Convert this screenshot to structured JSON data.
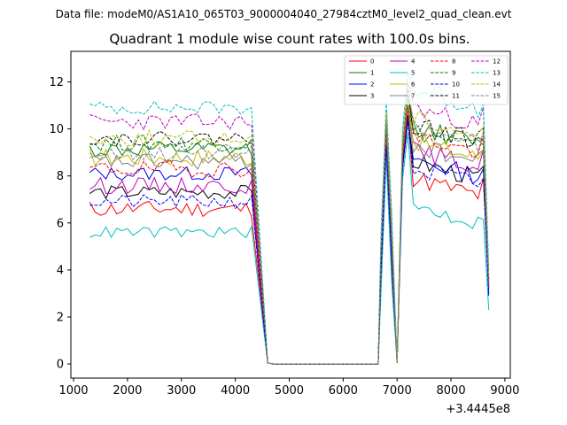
{
  "chart_data": {
    "type": "line",
    "suptitle": "Data file: modeM0/AS1A10_065T03_9000004040_27984cztM0_level2_quad_clean.evt",
    "title": "Quadrant 1 module wise count rates with 100.0s bins.",
    "xlabel": "",
    "ylabel": "",
    "x_offset_label": "+3.4445e8",
    "xlim": [
      950,
      9100
    ],
    "ylim": [
      -0.6,
      13.3
    ],
    "xticks": [
      1000,
      2000,
      3000,
      4000,
      5000,
      6000,
      7000,
      8000,
      9000
    ],
    "xtick_labels": [
      "1000",
      "2000",
      "3000",
      "4000",
      "5000",
      "6000",
      "7000",
      "8000",
      "9000"
    ],
    "yticks": [
      0,
      2,
      4,
      6,
      8,
      10,
      12
    ],
    "ytick_labels": [
      "0",
      "2",
      "4",
      "6",
      "8",
      "10",
      "12"
    ],
    "legend_location": "upper right",
    "x_segments": {
      "seg1": {
        "start": 1300,
        "step": 100,
        "count": 31
      },
      "gap": [
        4500,
        4600,
        4700,
        6650,
        6700
      ],
      "seg2": [
        6800,
        6900,
        7000,
        7100,
        7200,
        7300,
        7400,
        7500,
        7600,
        7700,
        7800,
        7900,
        8000,
        8100,
        8200,
        8300,
        8400,
        8500,
        8600,
        8700
      ]
    },
    "series": [
      {
        "name": "0",
        "color": "#ff0000",
        "dash": "solid",
        "base1": 6.6,
        "amp1": 0.35,
        "base2": 7.0,
        "amp2": 0.4,
        "peak": 10.6,
        "end": 3.3,
        "seed": 11
      },
      {
        "name": "1",
        "color": "#008000",
        "dash": "solid",
        "base1": 9.1,
        "amp1": 0.35,
        "base2": 9.2,
        "amp2": 0.4,
        "peak": 11.3,
        "end": 3.6,
        "seed": 12
      },
      {
        "name": "2",
        "color": "#0000ff",
        "dash": "solid",
        "base1": 8.1,
        "amp1": 0.3,
        "base2": 7.8,
        "amp2": 0.4,
        "peak": 10.4,
        "end": 3.0,
        "seed": 13
      },
      {
        "name": "3",
        "color": "#000000",
        "dash": "solid",
        "base1": 7.3,
        "amp1": 0.3,
        "base2": 7.7,
        "amp2": 0.4,
        "peak": 10.6,
        "end": 3.2,
        "seed": 14
      },
      {
        "name": "4",
        "color": "#bf00bf",
        "dash": "solid",
        "base1": 7.6,
        "amp1": 0.35,
        "base2": 8.2,
        "amp2": 0.4,
        "peak": 10.9,
        "end": 3.2,
        "seed": 15
      },
      {
        "name": "5",
        "color": "#00bfbf",
        "dash": "solid",
        "base1": 5.6,
        "amp1": 0.25,
        "base2": 5.8,
        "amp2": 0.35,
        "peak": 9.8,
        "end": 2.3,
        "seed": 16
      },
      {
        "name": "6",
        "color": "#bfbf00",
        "dash": "solid",
        "base1": 8.8,
        "amp1": 0.4,
        "base2": 8.6,
        "amp2": 0.4,
        "peak": 11.2,
        "end": 3.4,
        "seed": 17
      },
      {
        "name": "7",
        "color": "#808080",
        "dash": "solid",
        "base1": 8.6,
        "amp1": 0.35,
        "base2": 8.4,
        "amp2": 0.4,
        "peak": 11.0,
        "end": 3.3,
        "seed": 18
      },
      {
        "name": "8",
        "color": "#ff0000",
        "dash": "dashed",
        "base1": 8.3,
        "amp1": 0.35,
        "base2": 8.8,
        "amp2": 0.4,
        "peak": 10.9,
        "end": 3.4,
        "seed": 19
      },
      {
        "name": "9",
        "color": "#008000",
        "dash": "dashed",
        "base1": 9.4,
        "amp1": 0.35,
        "base2": 9.0,
        "amp2": 0.4,
        "peak": 11.4,
        "end": 3.5,
        "seed": 20
      },
      {
        "name": "10",
        "color": "#0000ff",
        "dash": "dashed",
        "base1": 6.9,
        "amp1": 0.3,
        "base2": 7.4,
        "amp2": 0.5,
        "peak": 10.3,
        "end": 2.9,
        "seed": 21
      },
      {
        "name": "11",
        "color": "#000000",
        "dash": "dashed",
        "base1": 9.6,
        "amp1": 0.3,
        "base2": 9.3,
        "amp2": 0.4,
        "peak": 11.7,
        "end": 3.6,
        "seed": 22
      },
      {
        "name": "12",
        "color": "#bf00bf",
        "dash": "dashed",
        "base1": 10.3,
        "amp1": 0.35,
        "base2": 10.0,
        "amp2": 0.4,
        "peak": 12.0,
        "end": 3.8,
        "seed": 23
      },
      {
        "name": "13",
        "color": "#00bfbf",
        "dash": "dashed",
        "base1": 10.9,
        "amp1": 0.3,
        "base2": 10.8,
        "amp2": 0.5,
        "peak": 12.4,
        "end": 4.0,
        "seed": 24
      },
      {
        "name": "14",
        "color": "#bfbf00",
        "dash": "dashed",
        "base1": 9.6,
        "amp1": 0.35,
        "base2": 9.6,
        "amp2": 0.4,
        "peak": 11.9,
        "end": 3.7,
        "seed": 25
      },
      {
        "name": "15",
        "color": "#808080",
        "dash": "dashed",
        "base1": 9.0,
        "amp1": 0.35,
        "base2": 9.2,
        "amp2": 0.4,
        "peak": 11.5,
        "end": 3.5,
        "seed": 26
      }
    ]
  }
}
